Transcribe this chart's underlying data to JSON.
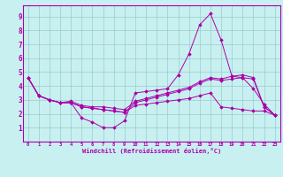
{
  "xlabel": "Windchill (Refroidissement éolien,°C)",
  "ylabel": "",
  "background_color": "#c8f0f0",
  "line_color": "#aa00aa",
  "grid_color": "#99cccc",
  "xlim": [
    -0.5,
    23.5
  ],
  "ylim": [
    0,
    9.8
  ],
  "xticks": [
    0,
    1,
    2,
    3,
    4,
    5,
    6,
    7,
    8,
    9,
    10,
    11,
    12,
    13,
    14,
    15,
    16,
    17,
    18,
    19,
    20,
    21,
    22,
    23
  ],
  "yticks": [
    1,
    2,
    3,
    4,
    5,
    6,
    7,
    8,
    9
  ],
  "series": [
    [
      4.6,
      3.3,
      3.0,
      2.8,
      2.8,
      1.7,
      1.4,
      1.0,
      1.0,
      1.5,
      3.5,
      3.6,
      3.7,
      3.8,
      4.8,
      6.3,
      8.4,
      9.2,
      7.3,
      4.7,
      4.6,
      3.8,
      2.7,
      1.9
    ],
    [
      4.6,
      3.3,
      3.0,
      2.8,
      2.8,
      2.5,
      2.4,
      2.3,
      2.2,
      2.1,
      2.8,
      3.0,
      3.2,
      3.4,
      3.6,
      3.8,
      4.2,
      4.5,
      4.4,
      4.5,
      4.6,
      4.5,
      2.5,
      1.9
    ],
    [
      4.6,
      3.3,
      3.0,
      2.8,
      2.9,
      2.6,
      2.5,
      2.5,
      2.4,
      2.3,
      2.9,
      3.1,
      3.3,
      3.5,
      3.7,
      3.9,
      4.3,
      4.6,
      4.5,
      4.7,
      4.8,
      4.6,
      2.5,
      1.9
    ],
    [
      4.6,
      3.3,
      3.0,
      2.8,
      2.8,
      2.5,
      2.4,
      2.3,
      2.2,
      2.1,
      2.6,
      2.7,
      2.8,
      2.9,
      3.0,
      3.1,
      3.3,
      3.5,
      2.5,
      2.4,
      2.3,
      2.2,
      2.2,
      1.9
    ]
  ]
}
